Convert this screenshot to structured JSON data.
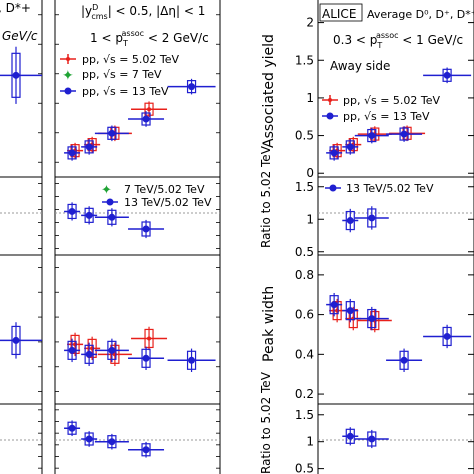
{
  "colors": {
    "red": "#e8201a",
    "green": "#1fa334",
    "blue": "#1f1fd0",
    "grid": "#999999"
  },
  "left": {
    "header_lines": [
      "|y",
      "D",
      "cms",
      "| < 0.5, |Δη| < 1",
      "1 < p",
      "T",
      "assoc",
      " < 2 GeV/c"
    ],
    "legend": [
      "pp, √s = 5.02 TeV",
      "pp, √s = 7  TeV",
      "pp, √s = 13 TeV"
    ],
    "ratio_legend": [
      "7  TeV/5.02 TeV",
      "13 TeV/5.02 TeV"
    ],
    "edge_text": [
      ", D*+",
      "GeV/c"
    ]
  },
  "right": {
    "alice_label": "ALICE",
    "species_label": "Average D⁰, D⁺, D*⁺",
    "selection": "0.3 < p",
    "selection_sub": "T",
    "selection_sup": "assoc",
    "selection_tail": " < 1 GeV/c",
    "side_label": "Away side",
    "legend": [
      "pp, √s = 5.02 TeV",
      "pp, √s = 13 TeV"
    ],
    "ratio_legend": [
      "13 TeV/5.02 TeV"
    ],
    "ylabels": [
      "Associated yield",
      "Ratio to 5.02 TeV",
      "Peak width",
      "Ratio to 5.02 TeV"
    ],
    "ticks_yield": [
      "0",
      "0.5",
      "1",
      "1.5",
      "2"
    ],
    "ticks_ratio1": [
      "0.5",
      "1",
      "1.5"
    ],
    "ticks_width": [
      "0.2",
      "0.4",
      "0.6",
      "0.8"
    ],
    "ticks_ratio2": [
      "0.5",
      "1",
      "1.5"
    ]
  },
  "chart_data": [
    {
      "type": "scatter",
      "title": "Associated yield (away side)",
      "ylabel": "Associated yield",
      "ylim": [
        0,
        2.2
      ],
      "series": [
        {
          "name": "pp, √s = 5.02 TeV",
          "points": [
            [
              3.5,
              0.3
            ],
            [
              5,
              0.38
            ],
            [
              7,
              0.52
            ],
            [
              10,
              0.53
            ]
          ]
        },
        {
          "name": "pp, √s = 13 TeV",
          "points": [
            [
              3.5,
              0.27
            ],
            [
              5,
              0.35
            ],
            [
              7,
              0.5
            ],
            [
              10,
              0.52
            ],
            [
              14,
              1.3
            ]
          ]
        }
      ]
    },
    {
      "type": "scatter",
      "title": "Ratio to 5.02 TeV (yield)",
      "ylabel": "Ratio to 5.02 TeV",
      "ylim": [
        0.4,
        1.7
      ],
      "series": [
        {
          "name": "13 TeV/5.02 TeV",
          "points": [
            [
              5,
              0.98
            ],
            [
              7,
              1.02
            ]
          ]
        }
      ]
    },
    {
      "type": "scatter",
      "title": "Peak width (away side)",
      "ylabel": "Peak width",
      "ylim": [
        0.1,
        0.9
      ],
      "series": [
        {
          "name": "pp, √s = 5.02 TeV",
          "points": [
            [
              3.5,
              0.62
            ],
            [
              5,
              0.58
            ],
            [
              7,
              0.57
            ]
          ]
        },
        {
          "name": "pp, √s = 13 TeV",
          "points": [
            [
              3.5,
              0.65
            ],
            [
              5,
              0.62
            ],
            [
              7,
              0.58
            ],
            [
              10,
              0.37
            ],
            [
              14,
              0.49
            ]
          ]
        }
      ]
    },
    {
      "type": "scatter",
      "title": "Ratio to 5.02 TeV (width)",
      "ylabel": "Ratio to 5.02 TeV",
      "ylim": [
        0.4,
        1.7
      ],
      "series": [
        {
          "name": "13 TeV/5.02 TeV",
          "points": [
            [
              5,
              1.1
            ],
            [
              7,
              1.05
            ]
          ]
        }
      ]
    }
  ]
}
